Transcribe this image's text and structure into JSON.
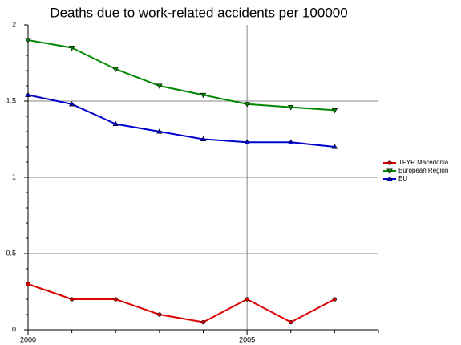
{
  "chart_data": {
    "type": "line",
    "title": "Deaths due to work-related accidents per 100000",
    "x": [
      2000,
      2001,
      2002,
      2003,
      2004,
      2005,
      2006,
      2007
    ],
    "series": [
      {
        "name": "TFYR Macedonia",
        "color": "#dd0000",
        "marker": "circle",
        "values": [
          0.3,
          0.2,
          0.2,
          0.1,
          0.05,
          0.2,
          0.05,
          0.2
        ]
      },
      {
        "name": "European Region",
        "color": "#008800",
        "marker": "triangle-down",
        "values": [
          1.9,
          1.85,
          1.71,
          1.6,
          1.54,
          1.48,
          1.46,
          1.44
        ]
      },
      {
        "name": "EU",
        "color": "#0000cc",
        "marker": "triangle-up",
        "values": [
          1.54,
          1.48,
          1.35,
          1.3,
          1.25,
          1.23,
          1.23,
          1.2
        ]
      }
    ],
    "xlim": [
      2000,
      2008
    ],
    "xticks": [
      2000,
      2005
    ],
    "x_minor_ticks": [
      2001,
      2002,
      2003,
      2004,
      2006,
      2007,
      2008
    ],
    "ylim": [
      0,
      2
    ],
    "yticks": [
      0,
      0.5,
      1,
      1.5,
      2
    ],
    "y_minor_ticks": [
      0.1,
      0.2,
      0.3,
      0.4,
      0.6,
      0.7,
      0.8,
      0.9,
      1.1,
      1.2,
      1.3,
      1.4,
      1.6,
      1.7,
      1.8,
      1.9
    ],
    "grid": true,
    "legend": "right"
  }
}
